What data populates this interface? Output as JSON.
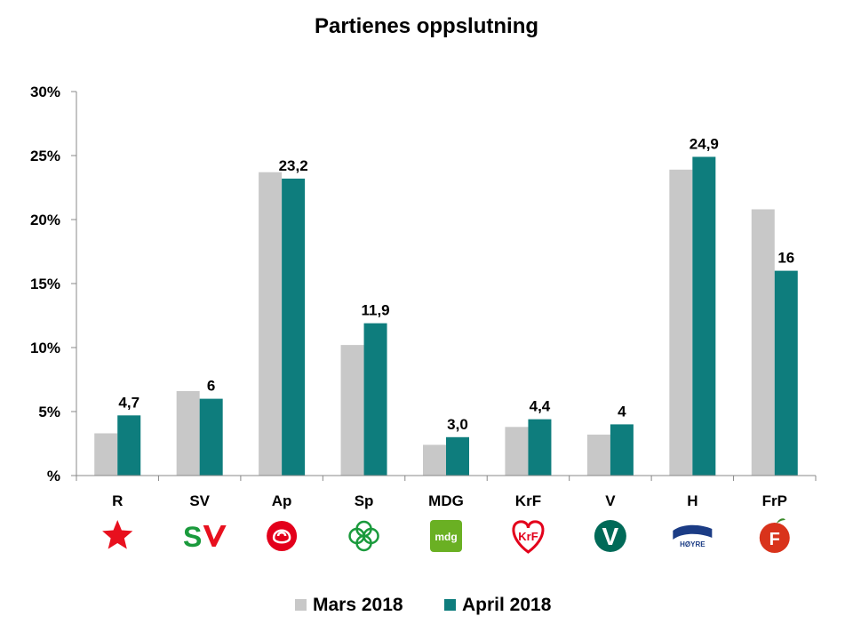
{
  "chart_data": {
    "type": "bar",
    "title": "Partienes oppslutning",
    "categories": [
      "R",
      "SV",
      "Ap",
      "Sp",
      "MDG",
      "KrF",
      "V",
      "H",
      "FrP"
    ],
    "series": [
      {
        "name": "Mars 2018",
        "color": "#c8c8c8",
        "values": [
          3.3,
          6.6,
          23.7,
          10.2,
          2.4,
          3.8,
          3.2,
          23.9,
          20.8
        ]
      },
      {
        "name": "April 2018",
        "color": "#0e7d7d",
        "values": [
          4.7,
          6.0,
          23.2,
          11.9,
          3.0,
          4.4,
          4.0,
          24.9,
          16.0
        ]
      }
    ],
    "data_labels": [
      "4,7",
      "6",
      "23,2",
      "11,9",
      "3,0",
      "4,4",
      "4",
      "24,9",
      "16"
    ],
    "yticks": [
      "%",
      "5%",
      "10%",
      "15%",
      "20%",
      "25%",
      "30%"
    ],
    "ylim": [
      0,
      30
    ],
    "xlabel": "",
    "ylabel": "",
    "grid": false,
    "legend_position": "bottom-center"
  },
  "logos": [
    {
      "party": "R",
      "icon": "r-star-icon",
      "color": "#e8101e"
    },
    {
      "party": "SV",
      "icon": "sv-logo-icon",
      "color": "#e8101e",
      "text": "S"
    },
    {
      "party": "Ap",
      "icon": "ap-rose-icon",
      "color": "#e3001b"
    },
    {
      "party": "Sp",
      "icon": "sp-clover-icon",
      "color": "#1a9a3c"
    },
    {
      "party": "MDG",
      "icon": "mdg-logo-icon",
      "color": "#6ab023",
      "text": "mdg"
    },
    {
      "party": "KrF",
      "icon": "krf-heart-icon",
      "color": "#e3001b",
      "text": "KrF"
    },
    {
      "party": "V",
      "icon": "v-logo-icon",
      "color": "#006a58",
      "text": "V"
    },
    {
      "party": "H",
      "icon": "h-hoyre-icon",
      "color": "#1b3c85",
      "text": "HØYRE"
    },
    {
      "party": "FrP",
      "icon": "frp-apple-icon",
      "color": "#d9331b",
      "text": "F"
    }
  ]
}
